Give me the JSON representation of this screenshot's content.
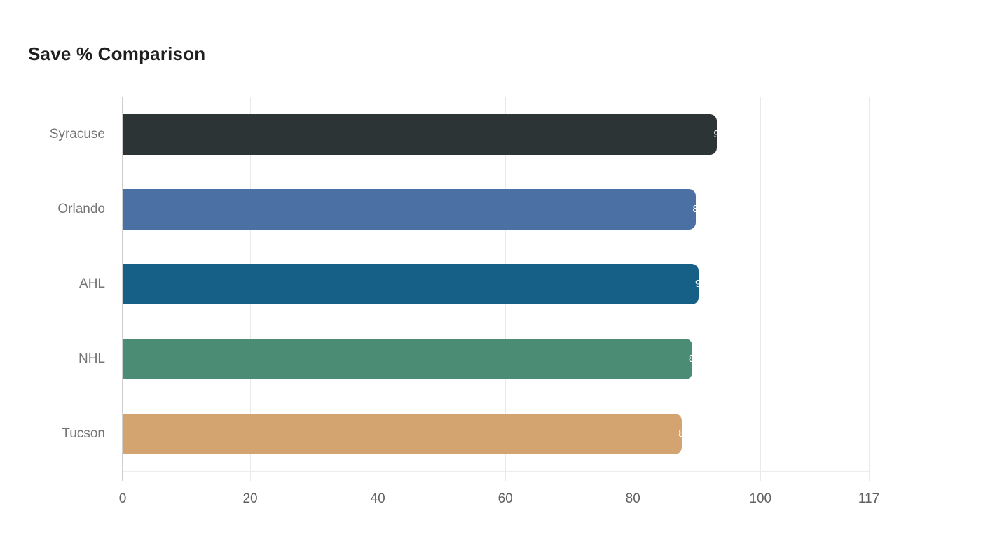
{
  "title": "Save % Comparison",
  "chart_data": {
    "type": "bar",
    "orientation": "horizontal",
    "title": "Save % Comparison",
    "categories": [
      "Syracuse",
      "Orlando",
      "AHL",
      "NHL",
      "Tucson"
    ],
    "values": [
      93.2,
      89.9,
      90.3,
      89.3,
      87.7
    ],
    "value_labels": [
      "93.2",
      "89.9",
      "90.3",
      "89.3",
      "87.7"
    ],
    "bar_colors": [
      "#2d3436",
      "#4a70a4",
      "#165f86",
      "#4a8c74",
      "#d3a470"
    ],
    "xlabel": "",
    "ylabel": "",
    "x_ticks": [
      0,
      20,
      40,
      60,
      80,
      100,
      117
    ],
    "xlim": [
      0,
      117
    ],
    "grid": "vertical-only",
    "legend": "none",
    "colors": {
      "background": "#ffffff",
      "grid_color": "#e9e9e9",
      "axis_line_color": "#cfcfcf",
      "title_color": "#1f1f1f",
      "category_label_color": "#757575",
      "tick_label_color": "#616161",
      "value_label_color": "#ffffff"
    }
  }
}
